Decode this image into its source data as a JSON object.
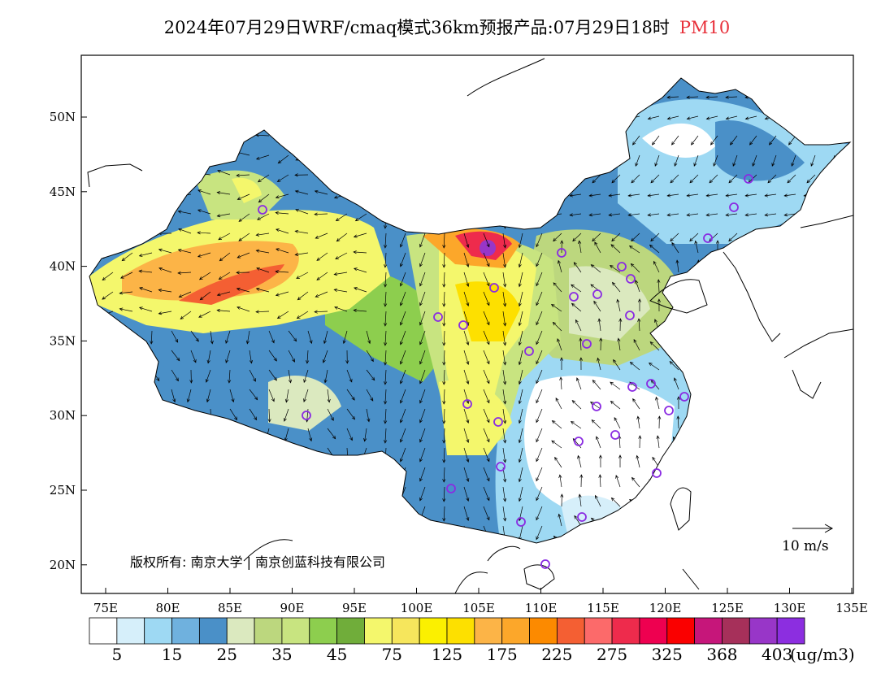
{
  "title": {
    "main": "2024年07月29日WRF/cmaq模式36km预报产品:07月29日18时",
    "variable": "PM10"
  },
  "map": {
    "lon_range": [
      73,
      135
    ],
    "lat_range": [
      18,
      54
    ],
    "lon_ticks": [
      "75E",
      "80E",
      "85E",
      "90E",
      "95E",
      "100E",
      "105E",
      "110E",
      "115E",
      "120E",
      "125E",
      "130E",
      "135E"
    ],
    "lat_ticks": [
      "50N",
      "45N",
      "40N",
      "35N",
      "30N",
      "25N",
      "20N"
    ],
    "copyright": "版权所有: 南京大学 | 南京创蓝科技有限公司",
    "vector_reference": "10 m/s",
    "colors": {
      "low": "#ffffff",
      "clean": "#4a90c8",
      "moderate": "#a8d060",
      "elevated": "#f8f060",
      "high": "#fca030",
      "very-high": "#f03c3c",
      "extreme": "#9040c8"
    }
  },
  "colorbar": {
    "colors": [
      "#ffffff",
      "#d6effa",
      "#9ed9f3",
      "#6fb1de",
      "#4a90c8",
      "#dbe9bf",
      "#bcd77e",
      "#c8e480",
      "#8dce4e",
      "#70ad3a",
      "#f4f76c",
      "#f6e65c",
      "#fbf000",
      "#fde000",
      "#fcb447",
      "#fca72a",
      "#fc8a00",
      "#f45f33",
      "#fc6a6a",
      "#ee2b4c",
      "#ee0050",
      "#fa0000",
      "#c6167a",
      "#a6305a",
      "#9836c8",
      "#8c2ee0"
    ],
    "labels": [
      "5",
      "15",
      "25",
      "35",
      "45",
      "75",
      "125",
      "175",
      "225",
      "275",
      "325",
      "368",
      "403"
    ],
    "unit": "(ug/m3)"
  }
}
